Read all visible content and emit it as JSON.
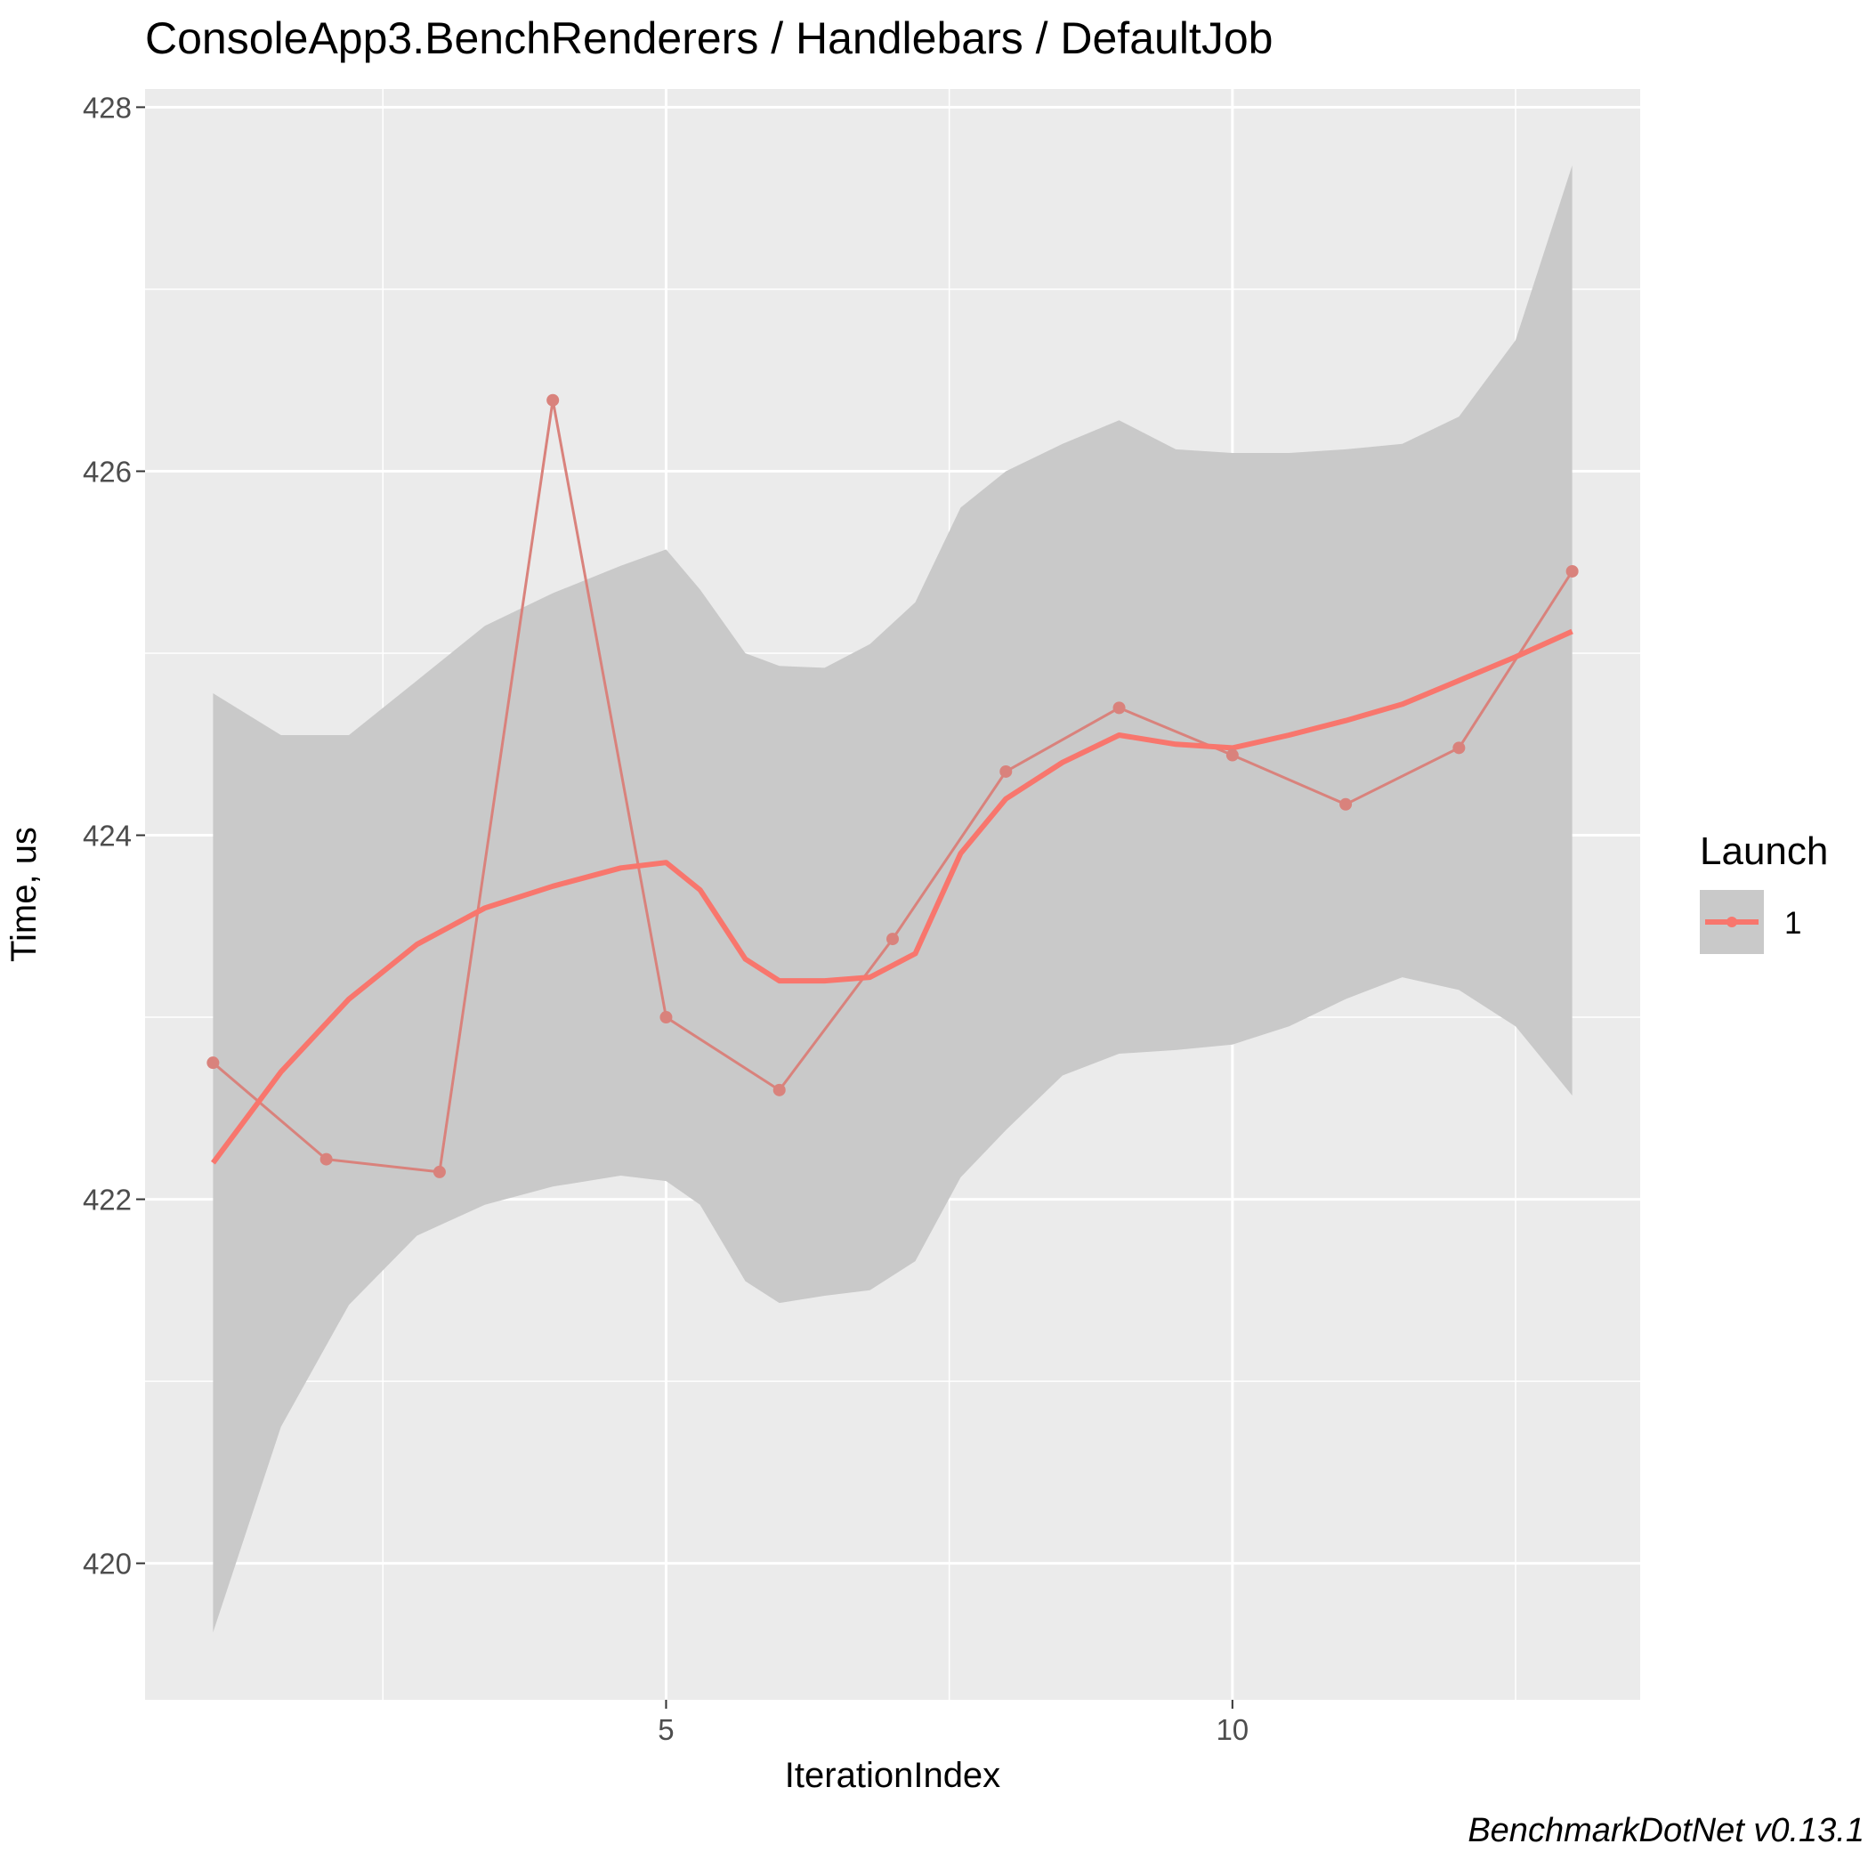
{
  "chart_data": {
    "type": "line",
    "title": "ConsoleApp3.BenchRenderers / Handlebars / DefaultJob",
    "xlabel": "IterationIndex",
    "ylabel": "Time, us",
    "caption": "BenchmarkDotNet v0.13.1",
    "xlim": [
      0.4,
      13.6
    ],
    "ylim": [
      419.25,
      428.1
    ],
    "x_ticks": [
      5,
      10
    ],
    "x_tick_labels": [
      "5",
      "10"
    ],
    "y_ticks": [
      420,
      422,
      424,
      426,
      428
    ],
    "y_tick_labels": [
      "420",
      "422",
      "424",
      "426",
      "428"
    ],
    "grid": true,
    "legend": {
      "title": "Launch",
      "position": "right",
      "entries": [
        "1"
      ]
    },
    "colors": {
      "series": "#f8766d",
      "raw_line": "#d9827c",
      "ribbon": "#c9c9c9",
      "panel": "#ebebeb",
      "grid": "#ffffff"
    },
    "series": [
      {
        "name": "1",
        "x": [
          1,
          2,
          3,
          4,
          5,
          6,
          7,
          8,
          9,
          10,
          11,
          12,
          13
        ],
        "y": [
          422.75,
          422.22,
          422.15,
          426.39,
          423.0,
          422.6,
          423.43,
          424.35,
          424.7,
          424.44,
          424.17,
          424.48,
          425.45
        ]
      }
    ],
    "smooth": {
      "x": [
        1,
        1.6,
        2.2,
        2.8,
        3.4,
        4.0,
        4.6,
        5.0,
        5.3,
        5.7,
        6.0,
        6.4,
        6.8,
        7.2,
        7.6,
        8.0,
        8.5,
        9.0,
        9.5,
        10.0,
        10.5,
        11.0,
        11.5,
        12.0,
        12.5,
        13.0
      ],
      "y": [
        422.2,
        422.7,
        423.1,
        423.4,
        423.6,
        423.72,
        423.82,
        423.85,
        423.7,
        423.32,
        423.2,
        423.2,
        423.22,
        423.35,
        423.9,
        424.2,
        424.4,
        424.55,
        424.5,
        424.48,
        424.55,
        424.63,
        424.72,
        424.85,
        424.98,
        425.12
      ],
      "lower": [
        419.62,
        420.75,
        421.42,
        421.8,
        421.97,
        422.07,
        422.13,
        422.1,
        421.97,
        421.55,
        421.43,
        421.47,
        421.5,
        421.66,
        422.12,
        422.38,
        422.68,
        422.8,
        422.82,
        422.85,
        422.95,
        423.1,
        423.22,
        423.15,
        422.95,
        422.57
      ],
      "upper": [
        424.78,
        424.55,
        424.55,
        424.85,
        425.15,
        425.33,
        425.48,
        425.57,
        425.35,
        425.0,
        424.93,
        424.92,
        425.05,
        425.28,
        425.8,
        426.0,
        426.15,
        426.28,
        426.12,
        426.1,
        426.1,
        426.12,
        426.15,
        426.3,
        426.72,
        427.68
      ]
    }
  }
}
